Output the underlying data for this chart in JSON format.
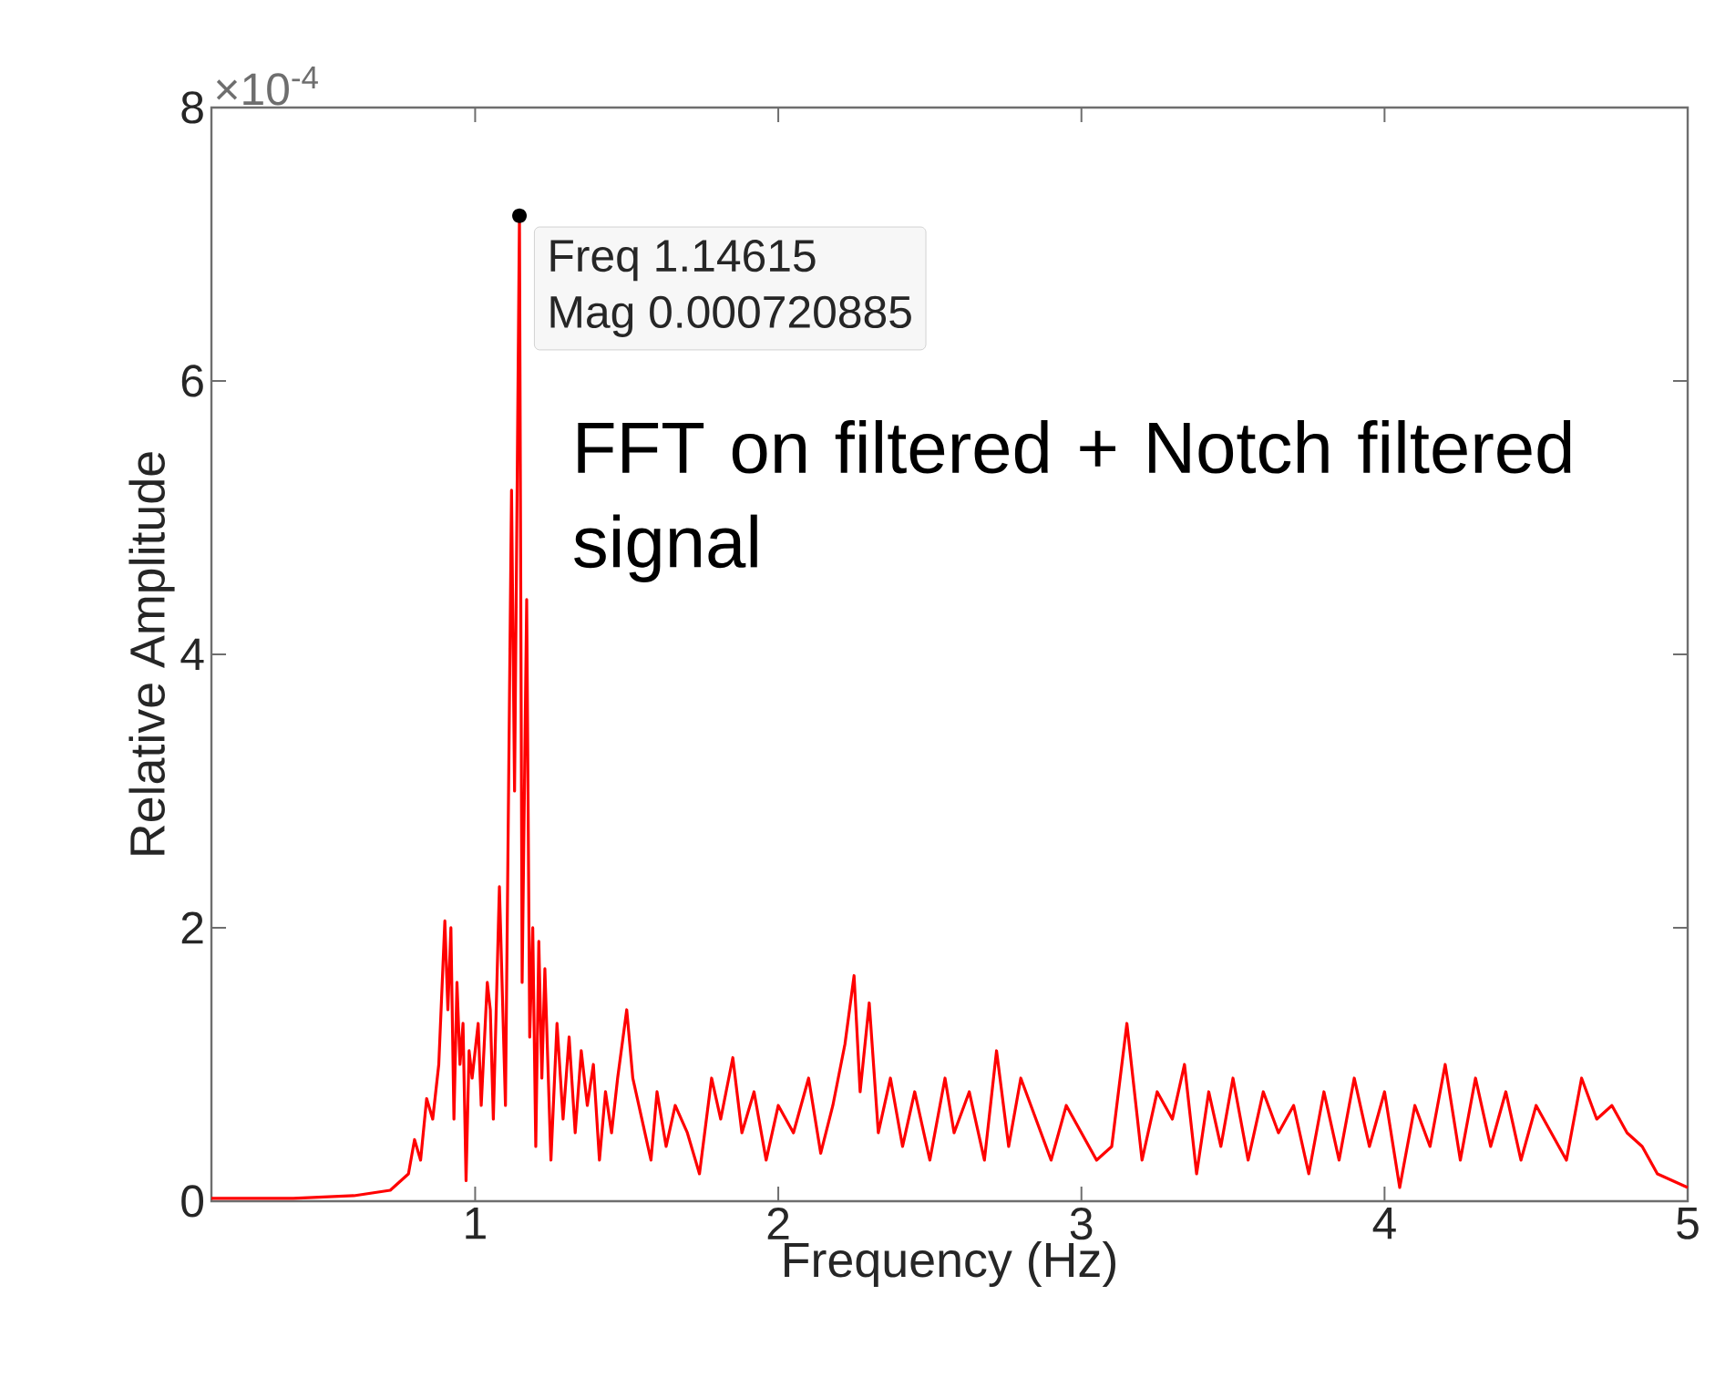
{
  "chart_data": {
    "type": "line",
    "xlabel": "Frequency (Hz)",
    "ylabel": "Relative Amplitude",
    "color": "#ff0000",
    "xlim": [
      0.13,
      5
    ],
    "xticks": [
      1,
      2,
      3,
      4,
      5
    ],
    "ylim": [
      0,
      8
    ],
    "yticks": [
      0,
      2,
      4,
      6,
      8
    ],
    "annotations": [
      "×10$^{-4}$",
      "FFT on filtered + Notch filtered signal",
      {
        "text": "Freq 1.14615",
        "x": 1.14615,
        "y": 7.20885
      },
      "Mag 0.000720885"
    ],
    "x": [
      0.13,
      0.4,
      0.6,
      0.72,
      0.78,
      0.8,
      0.82,
      0.84,
      0.86,
      0.88,
      0.9,
      0.91,
      0.92,
      0.93,
      0.94,
      0.95,
      0.96,
      0.97,
      0.98,
      0.99,
      1.01,
      1.02,
      1.04,
      1.05,
      1.06,
      1.08,
      1.09,
      1.1,
      1.12,
      1.13,
      1.14615,
      1.155,
      1.17,
      1.18,
      1.19,
      1.2,
      1.21,
      1.22,
      1.23,
      1.25,
      1.27,
      1.29,
      1.31,
      1.33,
      1.35,
      1.37,
      1.39,
      1.41,
      1.43,
      1.45,
      1.47,
      1.5,
      1.52,
      1.55,
      1.58,
      1.6,
      1.63,
      1.66,
      1.7,
      1.74,
      1.78,
      1.81,
      1.85,
      1.88,
      1.92,
      1.96,
      2.0,
      2.05,
      2.1,
      2.14,
      2.18,
      2.22,
      2.25,
      2.27,
      2.3,
      2.33,
      2.37,
      2.41,
      2.45,
      2.5,
      2.55,
      2.58,
      2.63,
      2.68,
      2.72,
      2.76,
      2.8,
      2.85,
      2.9,
      2.95,
      3.0,
      3.05,
      3.1,
      3.15,
      3.2,
      3.25,
      3.3,
      3.34,
      3.38,
      3.42,
      3.46,
      3.5,
      3.55,
      3.6,
      3.65,
      3.7,
      3.75,
      3.8,
      3.85,
      3.9,
      3.95,
      4.0,
      4.05,
      4.1,
      4.15,
      4.2,
      4.25,
      4.3,
      4.35,
      4.4,
      4.45,
      4.5,
      4.55,
      4.6,
      4.65,
      4.7,
      4.75,
      4.8,
      4.85,
      4.9,
      4.95,
      5.0
    ],
    "values": [
      0.02,
      0.02,
      0.04,
      0.08,
      0.2,
      0.45,
      0.3,
      0.75,
      0.6,
      1.0,
      2.05,
      1.4,
      2.0,
      0.6,
      1.6,
      1.0,
      1.3,
      0.15,
      1.1,
      0.9,
      1.3,
      0.7,
      1.6,
      1.4,
      0.6,
      2.3,
      1.5,
      0.7,
      5.2,
      3.0,
      7.20885,
      1.6,
      4.4,
      1.2,
      2.0,
      0.4,
      1.9,
      0.9,
      1.7,
      0.3,
      1.3,
      0.6,
      1.2,
      0.5,
      1.1,
      0.7,
      1.0,
      0.3,
      0.8,
      0.5,
      0.9,
      1.4,
      0.9,
      0.6,
      0.3,
      0.8,
      0.4,
      0.7,
      0.5,
      0.2,
      0.9,
      0.6,
      1.05,
      0.5,
      0.8,
      0.3,
      0.7,
      0.5,
      0.9,
      0.35,
      0.7,
      1.15,
      1.65,
      0.8,
      1.45,
      0.5,
      0.9,
      0.4,
      0.8,
      0.3,
      0.9,
      0.5,
      0.8,
      0.3,
      1.1,
      0.4,
      0.9,
      0.6,
      0.3,
      0.7,
      0.5,
      0.3,
      0.4,
      1.3,
      0.3,
      0.8,
      0.6,
      1.0,
      0.2,
      0.8,
      0.4,
      0.9,
      0.3,
      0.8,
      0.5,
      0.7,
      0.2,
      0.8,
      0.3,
      0.9,
      0.4,
      0.8,
      0.1,
      0.7,
      0.4,
      1.0,
      0.3,
      0.9,
      0.4,
      0.8,
      0.3,
      0.7,
      0.5,
      0.3,
      0.9,
      0.6,
      0.7,
      0.5,
      0.4,
      0.2,
      0.15,
      0.1
    ]
  }
}
